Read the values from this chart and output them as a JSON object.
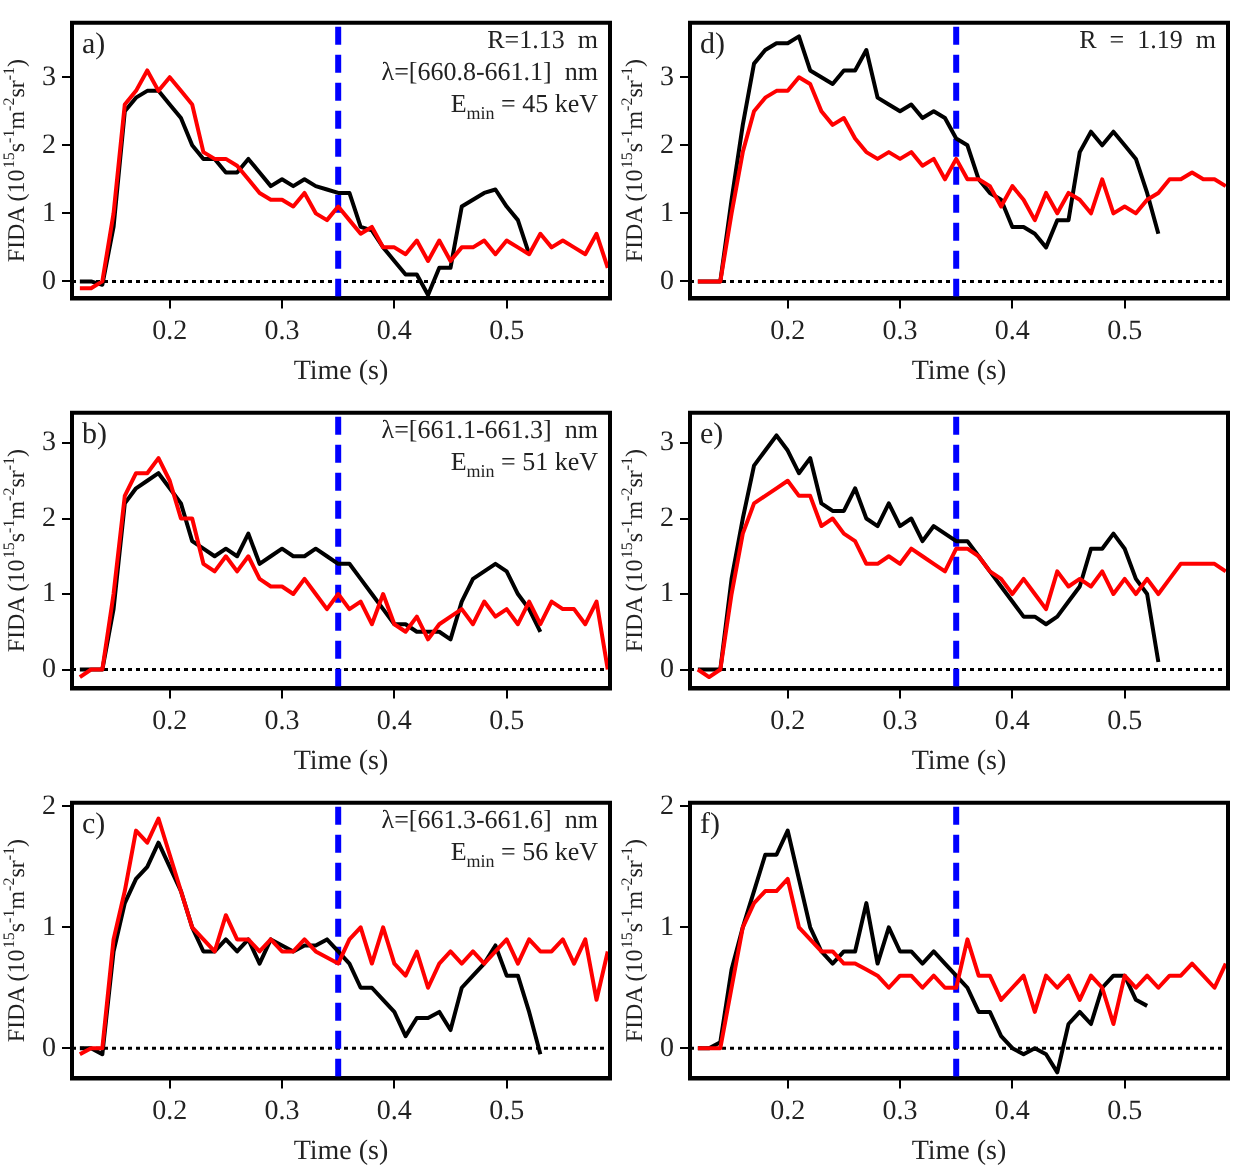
{
  "chart_data": [
    {
      "type": "line",
      "xlabel": "Time (s)",
      "ylabel": "FIDA (10$^{15}$s$^{-1}$m$^{-2}$sr$^{-1}$)",
      "annotations": [
        "a)",
        "R=1.13  m",
        "λ=[660.8-661.1]  nm",
        "E$_{min}$ = 45 keV"
      ],
      "xlim": [
        0.113,
        0.592
      ],
      "ylim": [
        -0.25,
        3.8
      ],
      "xticks": [
        0.2,
        0.3,
        0.4,
        0.5
      ],
      "yticks": [
        0,
        1,
        2,
        3
      ],
      "grid": false,
      "legend": false,
      "marker": "none",
      "line_style": "solid",
      "x": [
        0.12,
        0.13,
        0.14,
        0.15,
        0.16,
        0.17,
        0.18,
        0.19,
        0.2,
        0.21,
        0.22,
        0.23,
        0.24,
        0.25,
        0.26,
        0.27,
        0.28,
        0.29,
        0.3,
        0.31,
        0.32,
        0.33,
        0.34,
        0.35,
        0.36,
        0.37,
        0.38,
        0.39,
        0.4,
        0.41,
        0.42,
        0.43,
        0.44,
        0.45,
        0.46,
        0.47,
        0.48,
        0.49,
        0.5,
        0.51,
        0.52,
        0.53,
        0.54,
        0.55,
        0.56,
        0.57,
        0.58,
        0.59
      ],
      "series": [
        {
          "color": "#ff0000",
          "values": [
            -0.1,
            -0.1,
            0,
            1.0,
            2.6,
            2.8,
            3.1,
            2.8,
            3.0,
            2.8,
            2.6,
            1.9,
            1.8,
            1.8,
            1.7,
            1.5,
            1.3,
            1.2,
            1.2,
            1.1,
            1.3,
            1.0,
            0.9,
            1.1,
            0.9,
            0.7,
            0.8,
            0.5,
            0.5,
            0.4,
            0.6,
            0.3,
            0.6,
            0.3,
            0.5,
            0.5,
            0.6,
            0.4,
            0.6,
            0.5,
            0.4,
            0.7,
            0.5,
            0.6,
            0.5,
            0.4,
            0.7,
            0.2
          ]
        },
        {
          "color": "#000000",
          "values": [
            0,
            0,
            -0.05,
            0.8,
            2.5,
            2.7,
            2.8,
            2.8,
            2.6,
            2.4,
            2.0,
            1.8,
            1.8,
            1.6,
            1.6,
            1.8,
            1.6,
            1.4,
            1.5,
            1.4,
            1.5,
            1.4,
            1.35,
            1.3,
            1.3,
            0.8,
            0.75,
            0.5,
            0.3,
            0.1,
            0.1,
            -0.2,
            0.2,
            0.2,
            1.1,
            1.2,
            1.3,
            1.35,
            1.1,
            0.9,
            0.4,
            null,
            null,
            null,
            null,
            null,
            null,
            null
          ]
        }
      ],
      "ref_lines": [
        {
          "axis": "y",
          "value": 0,
          "color": "#000000",
          "line_style": "dotted"
        },
        {
          "axis": "x",
          "value": 0.35,
          "color": "#0000ff",
          "line_style": "dashed"
        }
      ]
    },
    {
      "type": "line",
      "xlabel": "Time (s)",
      "ylabel": "FIDA (10$^{15}$s$^{-1}$m$^{-2}$sr$^{-1}$)",
      "annotations": [
        "d)",
        "R  =  1.19  m"
      ],
      "xlim": [
        0.113,
        0.592
      ],
      "ylim": [
        -0.25,
        3.8
      ],
      "xticks": [
        0.2,
        0.3,
        0.4,
        0.5
      ],
      "yticks": [
        0,
        1,
        2,
        3
      ],
      "grid": false,
      "legend": false,
      "marker": "none",
      "line_style": "solid",
      "x": [
        0.12,
        0.13,
        0.14,
        0.15,
        0.16,
        0.17,
        0.18,
        0.19,
        0.2,
        0.21,
        0.22,
        0.23,
        0.24,
        0.25,
        0.26,
        0.27,
        0.28,
        0.29,
        0.3,
        0.31,
        0.32,
        0.33,
        0.34,
        0.35,
        0.36,
        0.37,
        0.38,
        0.39,
        0.4,
        0.41,
        0.42,
        0.43,
        0.44,
        0.45,
        0.46,
        0.47,
        0.48,
        0.49,
        0.5,
        0.51,
        0.52,
        0.53,
        0.54,
        0.55,
        0.56,
        0.57,
        0.58,
        0.59
      ],
      "series": [
        {
          "color": "#ff0000",
          "values": [
            0,
            0,
            0,
            1.0,
            1.9,
            2.5,
            2.7,
            2.8,
            2.8,
            3.0,
            2.9,
            2.5,
            2.3,
            2.4,
            2.1,
            1.9,
            1.8,
            1.9,
            1.8,
            1.9,
            1.7,
            1.8,
            1.5,
            1.8,
            1.5,
            1.5,
            1.4,
            1.1,
            1.4,
            1.2,
            0.9,
            1.3,
            1.0,
            1.3,
            1.2,
            1.0,
            1.5,
            1.0,
            1.1,
            1.0,
            1.2,
            1.3,
            1.5,
            1.5,
            1.6,
            1.5,
            1.5,
            1.4
          ]
        },
        {
          "color": "#000000",
          "values": [
            0,
            0,
            0,
            1.2,
            2.3,
            3.2,
            3.4,
            3.5,
            3.5,
            3.6,
            3.1,
            3.0,
            2.9,
            3.1,
            3.1,
            3.4,
            2.7,
            2.6,
            2.5,
            2.6,
            2.4,
            2.5,
            2.4,
            2.1,
            2.0,
            1.5,
            1.3,
            1.2,
            0.8,
            0.8,
            0.7,
            0.5,
            0.9,
            0.9,
            1.9,
            2.2,
            2.0,
            2.2,
            2.0,
            1.8,
            1.3,
            0.7,
            null,
            null,
            null,
            null,
            null,
            null
          ]
        }
      ],
      "ref_lines": [
        {
          "axis": "y",
          "value": 0,
          "color": "#000000",
          "line_style": "dotted"
        },
        {
          "axis": "x",
          "value": 0.35,
          "color": "#0000ff",
          "line_style": "dashed"
        }
      ]
    },
    {
      "type": "line",
      "xlabel": "Time (s)",
      "ylabel": "FIDA (10$^{15}$s$^{-1}$m$^{-2}$sr$^{-1}$)",
      "annotations": [
        "b)",
        "λ=[661.1-661.3]  nm",
        "E$_{min}$ = 51 keV"
      ],
      "xlim": [
        0.113,
        0.592
      ],
      "ylim": [
        -0.25,
        3.4
      ],
      "xticks": [
        0.2,
        0.3,
        0.4,
        0.5
      ],
      "yticks": [
        0,
        1,
        2,
        3
      ],
      "grid": false,
      "legend": false,
      "marker": "none",
      "line_style": "solid",
      "x": [
        0.12,
        0.13,
        0.14,
        0.15,
        0.16,
        0.17,
        0.18,
        0.19,
        0.2,
        0.21,
        0.22,
        0.23,
        0.24,
        0.25,
        0.26,
        0.27,
        0.28,
        0.29,
        0.3,
        0.31,
        0.32,
        0.33,
        0.34,
        0.35,
        0.36,
        0.37,
        0.38,
        0.39,
        0.4,
        0.41,
        0.42,
        0.43,
        0.44,
        0.45,
        0.46,
        0.47,
        0.48,
        0.49,
        0.5,
        0.51,
        0.52,
        0.53,
        0.54,
        0.55,
        0.56,
        0.57,
        0.58,
        0.59
      ],
      "series": [
        {
          "color": "#ff0000",
          "values": [
            -0.1,
            0,
            0,
            1.0,
            2.3,
            2.6,
            2.6,
            2.8,
            2.5,
            2.0,
            2.0,
            1.4,
            1.3,
            1.5,
            1.3,
            1.5,
            1.2,
            1.1,
            1.1,
            1.0,
            1.2,
            1.0,
            0.8,
            1.0,
            0.8,
            0.9,
            0.6,
            1.0,
            0.6,
            0.5,
            0.7,
            0.4,
            0.6,
            0.7,
            0.8,
            0.6,
            0.9,
            0.7,
            0.8,
            0.6,
            0.9,
            0.6,
            0.9,
            0.8,
            0.8,
            0.6,
            0.9,
            0
          ]
        },
        {
          "color": "#000000",
          "values": [
            0,
            0,
            0,
            0.8,
            2.2,
            2.4,
            2.5,
            2.6,
            2.4,
            2.2,
            1.7,
            1.6,
            1.5,
            1.6,
            1.5,
            1.8,
            1.4,
            1.5,
            1.6,
            1.5,
            1.5,
            1.6,
            1.5,
            1.4,
            1.4,
            1.2,
            1.0,
            0.8,
            0.6,
            0.6,
            0.5,
            0.5,
            0.5,
            0.4,
            0.9,
            1.2,
            1.3,
            1.4,
            1.3,
            1.0,
            0.8,
            0.5,
            null,
            null,
            null,
            null,
            null,
            null
          ]
        }
      ],
      "ref_lines": [
        {
          "axis": "y",
          "value": 0,
          "color": "#000000",
          "line_style": "dotted"
        },
        {
          "axis": "x",
          "value": 0.35,
          "color": "#0000ff",
          "line_style": "dashed"
        }
      ]
    },
    {
      "type": "line",
      "xlabel": "Time (s)",
      "ylabel": "FIDA (10$^{15}$s$^{-1}$m$^{-2}$sr$^{-1}$)",
      "annotations": [
        "e)"
      ],
      "xlim": [
        0.113,
        0.592
      ],
      "ylim": [
        -0.25,
        3.4
      ],
      "xticks": [
        0.2,
        0.3,
        0.4,
        0.5
      ],
      "yticks": [
        0,
        1,
        2,
        3
      ],
      "grid": false,
      "legend": false,
      "marker": "none",
      "line_style": "solid",
      "x": [
        0.12,
        0.13,
        0.14,
        0.15,
        0.16,
        0.17,
        0.18,
        0.19,
        0.2,
        0.21,
        0.22,
        0.23,
        0.24,
        0.25,
        0.26,
        0.27,
        0.28,
        0.29,
        0.3,
        0.31,
        0.32,
        0.33,
        0.34,
        0.35,
        0.36,
        0.37,
        0.38,
        0.39,
        0.4,
        0.41,
        0.42,
        0.43,
        0.44,
        0.45,
        0.46,
        0.47,
        0.48,
        0.49,
        0.5,
        0.51,
        0.52,
        0.53,
        0.54,
        0.55,
        0.56,
        0.57,
        0.58,
        0.59
      ],
      "series": [
        {
          "color": "#ff0000",
          "values": [
            0,
            -0.1,
            0,
            1.0,
            1.8,
            2.2,
            2.3,
            2.4,
            2.5,
            2.3,
            2.3,
            1.9,
            2.0,
            1.8,
            1.7,
            1.4,
            1.4,
            1.5,
            1.4,
            1.6,
            1.5,
            1.4,
            1.3,
            1.6,
            1.6,
            1.5,
            1.3,
            1.2,
            1.0,
            1.2,
            1.0,
            0.8,
            1.3,
            1.1,
            1.2,
            1.1,
            1.3,
            1.0,
            1.2,
            1.0,
            1.2,
            1.0,
            1.2,
            1.4,
            1.4,
            1.4,
            1.4,
            1.3
          ]
        },
        {
          "color": "#000000",
          "values": [
            0,
            0,
            0,
            1.2,
            2.0,
            2.7,
            2.9,
            3.1,
            2.9,
            2.6,
            2.8,
            2.2,
            2.1,
            2.1,
            2.4,
            2.0,
            1.9,
            2.2,
            1.9,
            2.0,
            1.7,
            1.9,
            1.8,
            1.7,
            1.7,
            1.5,
            1.3,
            1.1,
            0.9,
            0.7,
            0.7,
            0.6,
            0.7,
            0.9,
            1.1,
            1.6,
            1.6,
            1.8,
            1.6,
            1.2,
            1.0,
            0.1,
            null,
            null,
            null,
            null,
            null,
            null
          ]
        }
      ],
      "ref_lines": [
        {
          "axis": "y",
          "value": 0,
          "color": "#000000",
          "line_style": "dotted"
        },
        {
          "axis": "x",
          "value": 0.35,
          "color": "#0000ff",
          "line_style": "dashed"
        }
      ]
    },
    {
      "type": "line",
      "xlabel": "Time (s)",
      "ylabel": "FIDA (10$^{15}$s$^{-1}$m$^{-2}$sr$^{-1}$)",
      "annotations": [
        "c)",
        "λ=[661.3-661.6]  nm",
        "E$_{min}$ = 56 keV"
      ],
      "xlim": [
        0.113,
        0.592
      ],
      "ylim": [
        -0.25,
        2.03
      ],
      "xticks": [
        0.2,
        0.3,
        0.4,
        0.5
      ],
      "yticks": [
        0,
        1,
        2
      ],
      "grid": false,
      "legend": false,
      "marker": "none",
      "line_style": "solid",
      "x": [
        0.12,
        0.13,
        0.14,
        0.15,
        0.16,
        0.17,
        0.18,
        0.19,
        0.2,
        0.21,
        0.22,
        0.23,
        0.24,
        0.25,
        0.26,
        0.27,
        0.28,
        0.29,
        0.3,
        0.31,
        0.32,
        0.33,
        0.34,
        0.35,
        0.36,
        0.37,
        0.38,
        0.39,
        0.4,
        0.41,
        0.42,
        0.43,
        0.44,
        0.45,
        0.46,
        0.47,
        0.48,
        0.49,
        0.5,
        0.51,
        0.52,
        0.53,
        0.54,
        0.55,
        0.56,
        0.57,
        0.58,
        0.59
      ],
      "series": [
        {
          "color": "#ff0000",
          "values": [
            -0.05,
            0,
            0,
            0.9,
            1.3,
            1.8,
            1.7,
            1.9,
            1.6,
            1.3,
            1.0,
            0.9,
            0.8,
            1.1,
            0.9,
            0.9,
            0.8,
            0.9,
            0.8,
            0.8,
            0.9,
            0.8,
            0.75,
            0.7,
            0.9,
            1.0,
            0.7,
            1.0,
            0.7,
            0.6,
            0.8,
            0.5,
            0.7,
            0.8,
            0.7,
            0.8,
            0.7,
            0.8,
            0.9,
            0.7,
            0.9,
            0.8,
            0.8,
            0.9,
            0.7,
            0.9,
            0.4,
            0.8
          ]
        },
        {
          "color": "#000000",
          "values": [
            0,
            0,
            -0.05,
            0.8,
            1.2,
            1.4,
            1.5,
            1.7,
            1.5,
            1.3,
            1.0,
            0.8,
            0.8,
            0.9,
            0.8,
            0.9,
            0.7,
            0.9,
            0.85,
            0.8,
            0.85,
            0.85,
            0.9,
            0.8,
            0.7,
            0.5,
            0.5,
            0.4,
            0.3,
            0.1,
            0.25,
            0.25,
            0.3,
            0.15,
            0.5,
            0.6,
            0.7,
            0.85,
            0.6,
            0.6,
            0.3,
            -0.05,
            null,
            null,
            null,
            null,
            null,
            null
          ]
        }
      ],
      "ref_lines": [
        {
          "axis": "y",
          "value": 0,
          "color": "#000000",
          "line_style": "dotted"
        },
        {
          "axis": "x",
          "value": 0.35,
          "color": "#0000ff",
          "line_style": "dashed"
        }
      ]
    },
    {
      "type": "line",
      "xlabel": "Time (s)",
      "ylabel": "FIDA (10$^{15}$s$^{-1}$m$^{-2}$sr$^{-1}$)",
      "annotations": [
        "f)"
      ],
      "xlim": [
        0.113,
        0.592
      ],
      "ylim": [
        -0.25,
        2.03
      ],
      "xticks": [
        0.2,
        0.3,
        0.4,
        0.5
      ],
      "yticks": [
        0,
        1,
        2
      ],
      "grid": false,
      "legend": false,
      "marker": "none",
      "line_style": "solid",
      "x": [
        0.12,
        0.13,
        0.14,
        0.15,
        0.16,
        0.17,
        0.18,
        0.19,
        0.2,
        0.21,
        0.22,
        0.23,
        0.24,
        0.25,
        0.26,
        0.27,
        0.28,
        0.29,
        0.3,
        0.31,
        0.32,
        0.33,
        0.34,
        0.35,
        0.36,
        0.37,
        0.38,
        0.39,
        0.4,
        0.41,
        0.42,
        0.43,
        0.44,
        0.45,
        0.46,
        0.47,
        0.48,
        0.49,
        0.5,
        0.51,
        0.52,
        0.53,
        0.54,
        0.55,
        0.56,
        0.57,
        0.58,
        0.59
      ],
      "series": [
        {
          "color": "#ff0000",
          "values": [
            0,
            0,
            0,
            0.5,
            1.0,
            1.2,
            1.3,
            1.3,
            1.4,
            1.0,
            0.9,
            0.8,
            0.8,
            0.7,
            0.7,
            0.65,
            0.6,
            0.5,
            0.6,
            0.6,
            0.5,
            0.6,
            0.5,
            0.5,
            0.9,
            0.6,
            0.6,
            0.4,
            0.5,
            0.6,
            0.3,
            0.6,
            0.5,
            0.6,
            0.4,
            0.6,
            0.5,
            0.2,
            0.6,
            0.5,
            0.6,
            0.5,
            0.6,
            0.6,
            0.7,
            0.6,
            0.5,
            0.7
          ]
        },
        {
          "color": "#000000",
          "values": [
            0,
            0,
            0.05,
            0.65,
            1.0,
            1.3,
            1.6,
            1.6,
            1.8,
            1.4,
            1.0,
            0.8,
            0.7,
            0.8,
            0.8,
            1.2,
            0.7,
            1.0,
            0.8,
            0.8,
            0.7,
            0.8,
            0.7,
            0.6,
            0.5,
            0.3,
            0.3,
            0.1,
            0,
            -0.05,
            0,
            -0.05,
            -0.2,
            0.2,
            0.3,
            0.2,
            0.5,
            0.6,
            0.6,
            0.4,
            0.35,
            null,
            null,
            null,
            null,
            null,
            null,
            null
          ]
        }
      ],
      "ref_lines": [
        {
          "axis": "y",
          "value": 0,
          "color": "#000000",
          "line_style": "dotted"
        },
        {
          "axis": "x",
          "value": 0.35,
          "color": "#0000ff",
          "line_style": "dashed"
        }
      ]
    }
  ]
}
